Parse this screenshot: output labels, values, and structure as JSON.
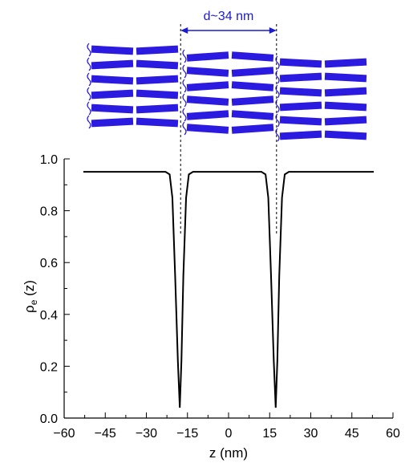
{
  "chart_data": {
    "type": "line",
    "xlabel": "z (nm)",
    "ylabel": {
      "base": "ρ",
      "sub": "e",
      "rest": " (z)"
    },
    "xlim": [
      -60,
      60
    ],
    "ylim": [
      0.0,
      1.0
    ],
    "xticks": [
      -60,
      -45,
      -30,
      -15,
      0,
      15,
      30,
      45,
      60
    ],
    "xtick_labels": [
      "−60",
      "−45",
      "−30",
      "−15",
      "0",
      "15",
      "30",
      "45",
      "60"
    ],
    "yticks": [
      0.0,
      0.2,
      0.4,
      0.6,
      0.8,
      1.0
    ],
    "ytick_labels": [
      "0.0",
      "0.2",
      "0.4",
      "0.6",
      "0.8",
      "1.0"
    ],
    "series": [
      {
        "color": "#000000",
        "points": [
          [
            -53,
            0.95
          ],
          [
            -23,
            0.95
          ],
          [
            -21.5,
            0.94
          ],
          [
            -20.5,
            0.85
          ],
          [
            -19.5,
            0.55
          ],
          [
            -18.5,
            0.22
          ],
          [
            -17.8,
            0.04
          ],
          [
            -17.2,
            0.22
          ],
          [
            -16.5,
            0.55
          ],
          [
            -15.5,
            0.85
          ],
          [
            -14.5,
            0.94
          ],
          [
            -13,
            0.95
          ],
          [
            12,
            0.95
          ],
          [
            13.5,
            0.94
          ],
          [
            14.5,
            0.85
          ],
          [
            15.5,
            0.55
          ],
          [
            16.5,
            0.22
          ],
          [
            17.2,
            0.04
          ],
          [
            17.8,
            0.22
          ],
          [
            18.5,
            0.55
          ],
          [
            19.5,
            0.85
          ],
          [
            20.5,
            0.94
          ],
          [
            22,
            0.95
          ],
          [
            53,
            0.95
          ]
        ]
      }
    ],
    "annotation": {
      "label": "d~34 nm",
      "from_z": -17.5,
      "to_z": 17.5,
      "color": "#1a1ad0"
    }
  },
  "illustration": {
    "bar_color": "#2b1ae0",
    "link_color": "#2b1ae0",
    "description_icon": "smectic-layers-icon"
  }
}
